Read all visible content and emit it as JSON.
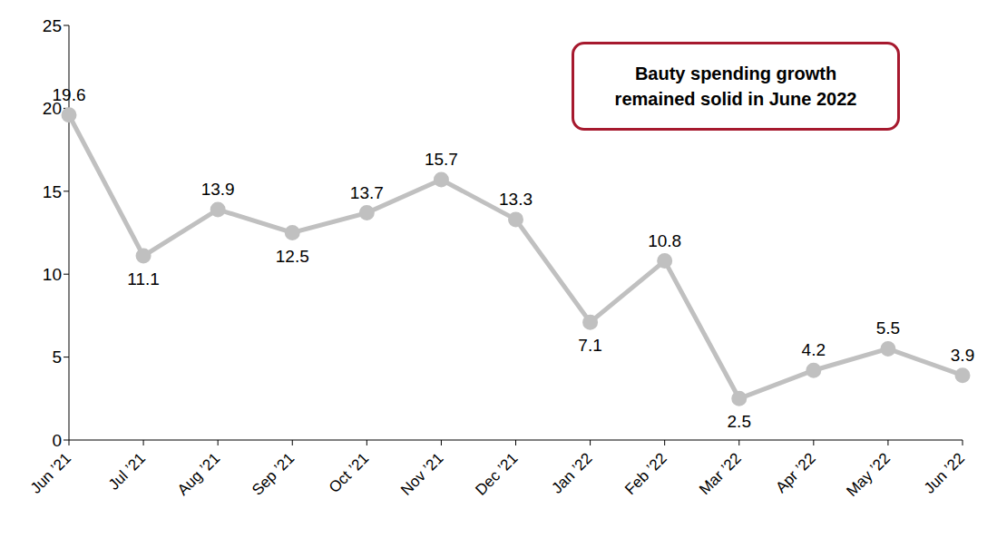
{
  "chart_data": {
    "type": "line",
    "annotation": "Bauty spending growth remained solid in June 2022",
    "categories": [
      "Jun ’21",
      "Jul ’21",
      "Aug ’21",
      "Sep ’21",
      "Oct ’21",
      "Nov ’21",
      "Dec ’21",
      "Jan ’22",
      "Feb ’22",
      "Mar ’22",
      "Apr ’22",
      "May ’22",
      "Jun ’22"
    ],
    "values": [
      19.6,
      11.1,
      13.9,
      12.5,
      13.7,
      15.7,
      13.3,
      7.1,
      10.8,
      2.5,
      4.2,
      5.5,
      3.9
    ],
    "color": "#c0c0c0",
    "ylim": [
      0,
      25
    ],
    "yticks": [
      0,
      5,
      10,
      15,
      20,
      25
    ],
    "grid": false,
    "data_labels": true,
    "marker": "circle"
  }
}
